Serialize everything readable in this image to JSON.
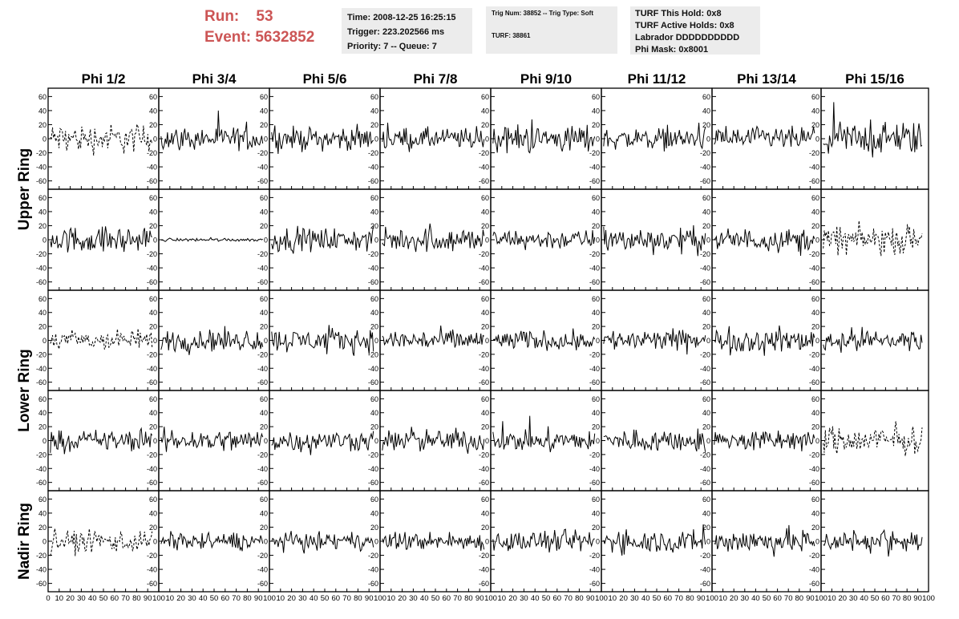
{
  "header": {
    "run_line": "Run:    53",
    "event_line": "Event: 5632852",
    "time": "Time: 2008-12-25 16:25:15",
    "trigger": "Trigger: 223.202566 ms",
    "priority": "Priority: 7 -- Queue: 7",
    "trig_num": "Trig Num: 38852 -- Trig Type: Soft",
    "turf": "TURF: 38861",
    "turf_hold": "TURF This Hold: 0x8",
    "turf_active": "TURF Active Holds: 0x8",
    "labrador": "Labrador DDDDDDDDDD",
    "phi_mask": "Phi Mask: 0x8001"
  },
  "colors": {
    "run_text": "#cc5555",
    "info_bg": "#ececec",
    "trace": "#000000"
  },
  "chart_data": {
    "type": "line",
    "columns": [
      "Phi 1/2",
      "Phi 3/4",
      "Phi 5/6",
      "Phi 7/8",
      "Phi 9/10",
      "Phi 11/12",
      "Phi 13/14",
      "Phi 15/16"
    ],
    "row_labels": [
      "Upper Ring",
      "Lower Ring",
      "Nadir Ring"
    ],
    "subrows_per_ring": [
      2,
      2,
      1
    ],
    "ylim": [
      -65,
      65
    ],
    "yticks": [
      -60,
      -40,
      -20,
      0,
      20,
      40,
      60
    ],
    "xlim": [
      0,
      100
    ],
    "xticks": [
      0,
      10,
      20,
      30,
      40,
      50,
      60,
      70,
      80,
      90,
      100
    ],
    "samples": 95,
    "grid": false,
    "dashed_panels": [
      [
        0,
        0
      ],
      [
        1,
        7
      ],
      [
        2,
        0
      ],
      [
        3,
        7
      ],
      [
        4,
        0
      ]
    ],
    "amplitudes": [
      [
        18,
        14,
        14,
        13,
        17,
        13,
        14,
        20
      ],
      [
        16,
        2,
        14,
        15,
        12,
        15,
        14,
        17
      ],
      [
        13,
        14,
        14,
        13,
        12,
        13,
        15,
        14
      ],
      [
        13,
        14,
        13,
        14,
        13,
        14,
        13,
        17
      ],
      [
        14,
        11,
        10,
        11,
        13,
        14,
        15,
        14
      ]
    ]
  }
}
